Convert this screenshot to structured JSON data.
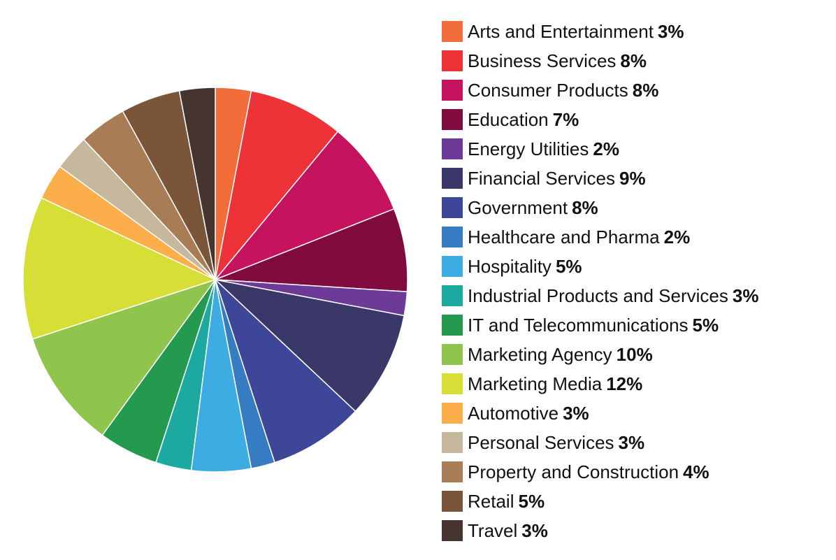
{
  "chart_data": {
    "type": "pie",
    "title": "",
    "legend_position": "right",
    "slices": [
      {
        "label": "Arts and Entertainment",
        "value": 3,
        "display": "3%",
        "color": "#f26d3a"
      },
      {
        "label": "Business Services",
        "value": 8,
        "display": "8%",
        "color": "#ee3338"
      },
      {
        "label": "Consumer Products",
        "value": 8,
        "display": "8%",
        "color": "#c5135f"
      },
      {
        "label": "Education",
        "value": 7,
        "display": "7%",
        "color": "#800b3f"
      },
      {
        "label": "Energy Utilities",
        "value": 2,
        "display": "2%",
        "color": "#6d3a97"
      },
      {
        "label": "Financial Services",
        "value": 9,
        "display": "9%",
        "color": "#393869"
      },
      {
        "label": "Government",
        "value": 8,
        "display": "8%",
        "color": "#3d4697"
      },
      {
        "label": "Healthcare and Pharma",
        "value": 2,
        "display": "2%",
        "color": "#357cc2"
      },
      {
        "label": "Hospitality",
        "value": 5,
        "display": "5%",
        "color": "#3cace2"
      },
      {
        "label": "Industrial Products and Services",
        "value": 3,
        "display": "3%",
        "color": "#1caaa0"
      },
      {
        "label": "IT and Telecommunications",
        "value": 5,
        "display": "5%",
        "color": "#239a4d"
      },
      {
        "label": "Marketing Agency",
        "value": 10,
        "display": "10%",
        "color": "#8fc54c"
      },
      {
        "label": "Marketing Media",
        "value": 12,
        "display": "12%",
        "color": "#d7df36"
      },
      {
        "label": "Automotive",
        "value": 3,
        "display": "3%",
        "color": "#fbae4a"
      },
      {
        "label": "Personal Services",
        "value": 3,
        "display": "3%",
        "color": "#c5b89d"
      },
      {
        "label": "Property and Construction",
        "value": 4,
        "display": "4%",
        "color": "#a87c55"
      },
      {
        "label": "Retail",
        "value": 5,
        "display": "5%",
        "color": "#7a553a"
      },
      {
        "label": "Travel",
        "value": 3,
        "display": "3%",
        "color": "#45352e"
      }
    ]
  }
}
